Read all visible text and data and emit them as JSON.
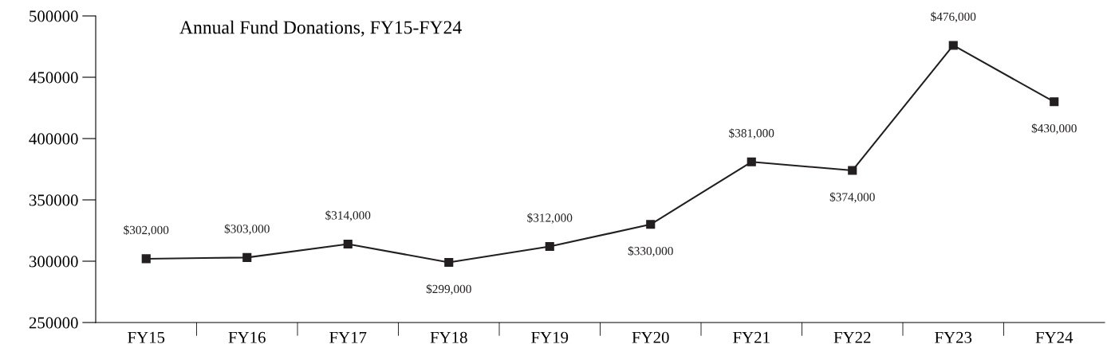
{
  "chart_data": {
    "type": "line",
    "title": "Annual Fund Donations, FY15-FY24",
    "categories": [
      "FY15",
      "FY16",
      "FY17",
      "FY18",
      "FY19",
      "FY20",
      "FY21",
      "FY22",
      "FY23",
      "FY24"
    ],
    "series": [
      {
        "color": "#231f20",
        "values": [
          302000,
          303000,
          314000,
          299000,
          312000,
          330000,
          381000,
          374000,
          476000,
          430000
        ],
        "value_labels": [
          "$302,000",
          "$303,000",
          "$314,000",
          "$299,000",
          "$312,000",
          "$330,000",
          "$381,000",
          "$374,000",
          "$476,000",
          "$430,000"
        ]
      }
    ],
    "ylim": [
      250000,
      500000
    ],
    "yticks": [
      250000,
      300000,
      350000,
      400000,
      450000,
      500000
    ],
    "grid": false,
    "legend": false,
    "marker": "square",
    "line_style": "solid"
  }
}
